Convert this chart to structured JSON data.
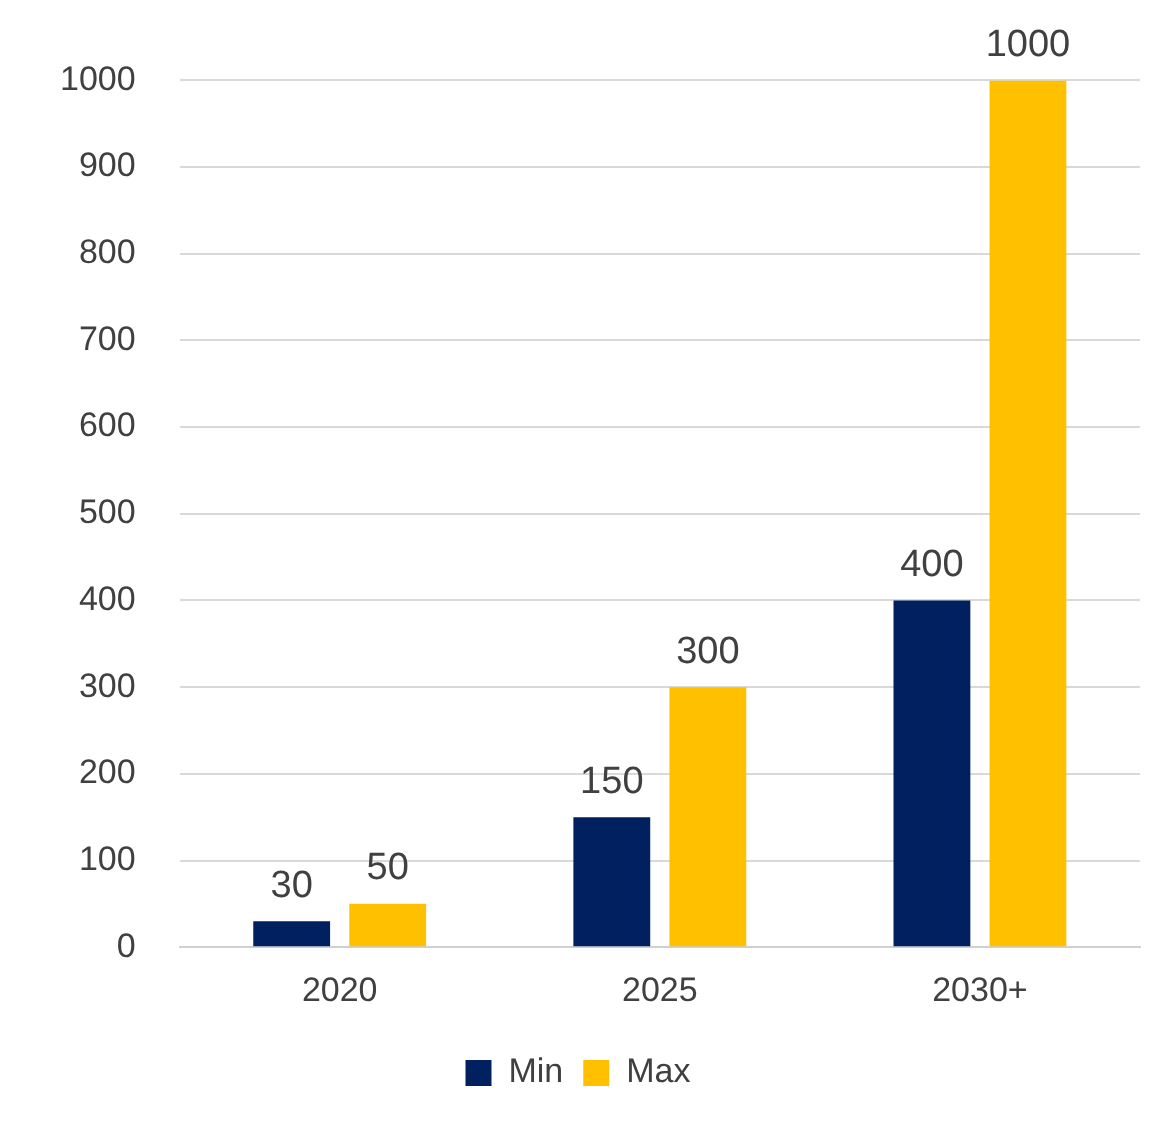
{
  "chart_data": {
    "type": "bar",
    "categories": [
      "2020",
      "2025",
      "2030+"
    ],
    "series": [
      {
        "name": "Min",
        "color": "#002060",
        "values": [
          30,
          150,
          400
        ]
      },
      {
        "name": "Max",
        "color": "#ffc000",
        "values": [
          50,
          300,
          1000
        ]
      }
    ],
    "ylim": [
      0,
      1000
    ],
    "yticks": [
      0,
      100,
      200,
      300,
      400,
      500,
      600,
      700,
      800,
      900,
      1000
    ],
    "grid": "y",
    "legend": "bottom",
    "data_labels": true
  }
}
